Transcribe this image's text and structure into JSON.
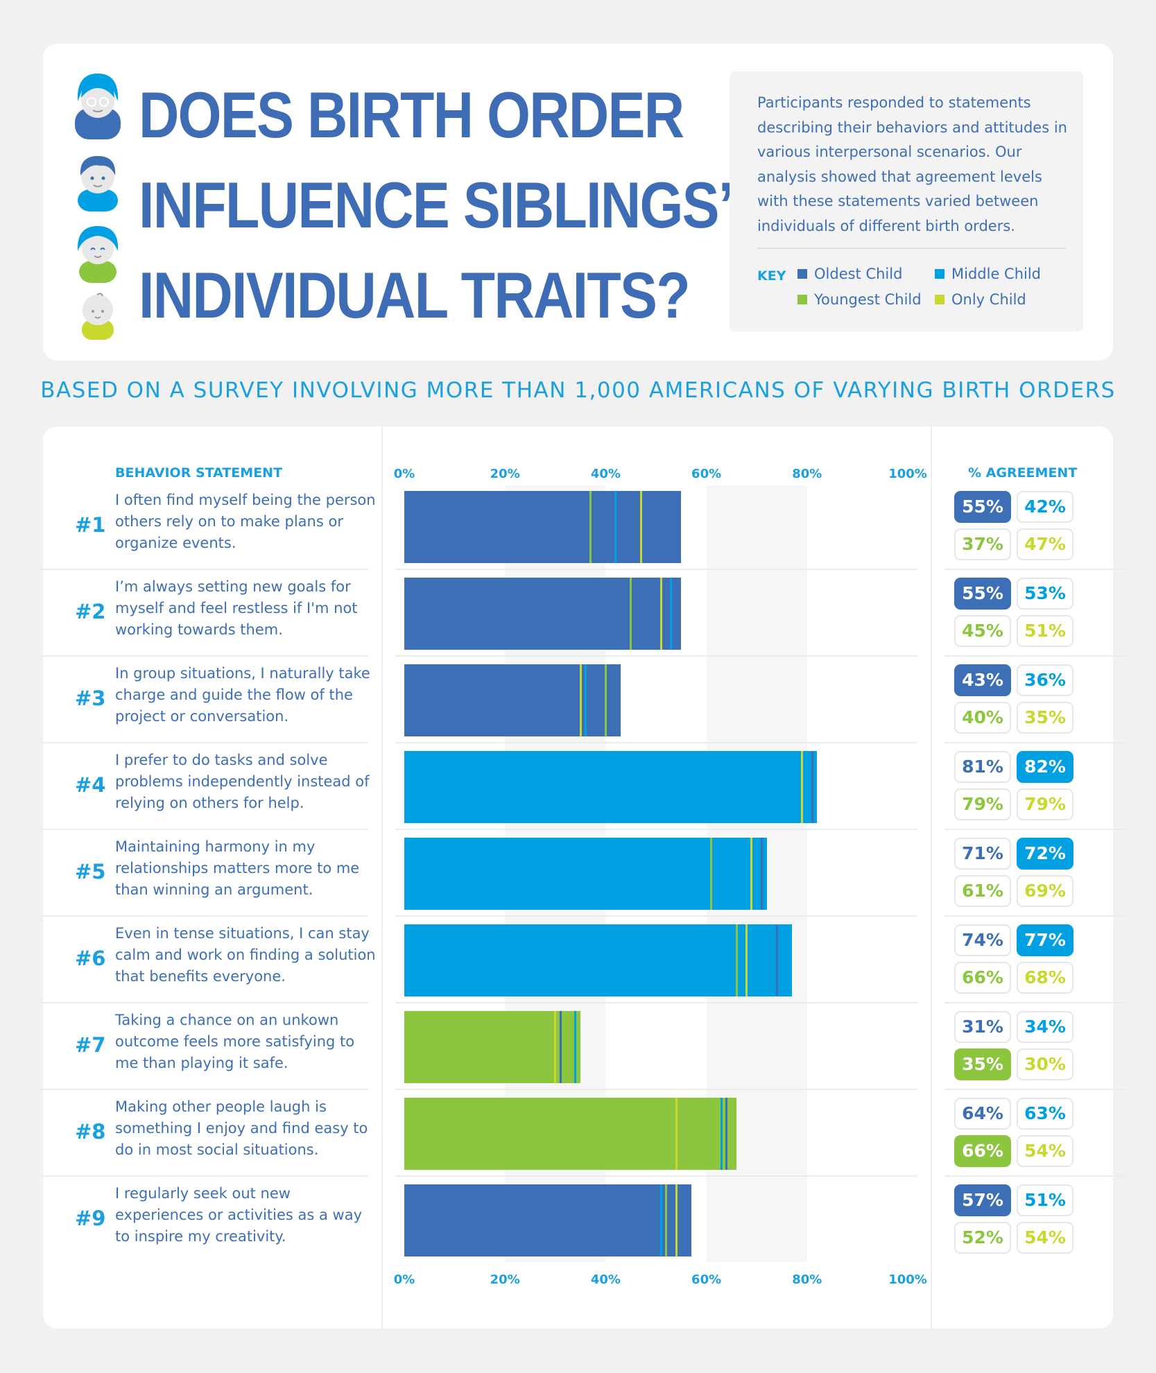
{
  "header": {
    "title_lines": [
      "DOES BIRTH ORDER",
      "INFLUENCE SIBLINGS’",
      "INDIVIDUAL TRAITS?"
    ],
    "description": "Participants responded to statements describing their behaviors and attitudes in various interpersonal scenarios. Our analysis showed that agreement levels with these statements varied between individuals of different birth orders.",
    "key_label": "KEY",
    "key_items": [
      "Oldest Child",
      "Middle Child",
      "Youngest Child",
      "Only Child"
    ]
  },
  "subtitle": "BASED ON A SURVEY INVOLVING MORE THAN 1,000 AMERICANS OF VARYING BIRTH ORDERS",
  "columns": {
    "statement": "BEHAVIOR STATEMENT",
    "agreement": "% AGREEMENT"
  },
  "colors": {
    "oldest": "#3c6fb6",
    "middle": "#00a0e3",
    "youngest": "#8cc63f",
    "only": "#c8d82f"
  },
  "chart_data": {
    "type": "bar",
    "orientation": "horizontal",
    "xlim": [
      0,
      100
    ],
    "tick_labels": [
      "0%",
      "20%",
      "40%",
      "60%",
      "80%",
      "100%"
    ],
    "series_names": [
      "Oldest Child",
      "Middle Child",
      "Youngest Child",
      "Only Child"
    ],
    "rows": [
      {
        "num": "#1",
        "statement": "I often find myself being the person others rely on to make plans or organize events.",
        "values": [
          55,
          42,
          37,
          47
        ],
        "labels": [
          "55%",
          "42%",
          "37%",
          "47%"
        ],
        "highlight": 0
      },
      {
        "num": "#2",
        "statement": "I’m always setting new goals for myself and feel restless if I'm not working towards them.",
        "values": [
          55,
          53,
          45,
          51
        ],
        "labels": [
          "55%",
          "53%",
          "45%",
          "51%"
        ],
        "highlight": 0
      },
      {
        "num": "#3",
        "statement": "In group situations, I naturally take charge and guide the flow of the project or conversation.",
        "values": [
          43,
          36,
          40,
          35
        ],
        "labels": [
          "43%",
          "36%",
          "40%",
          "35%"
        ],
        "highlight": 0
      },
      {
        "num": "#4",
        "statement": "I prefer to do tasks and solve problems independently instead of relying on others for help.",
        "values": [
          81,
          82,
          79,
          79
        ],
        "labels": [
          "81%",
          "82%",
          "79%",
          "79%"
        ],
        "highlight": 1
      },
      {
        "num": "#5",
        "statement": "Maintaining harmony in my relationships matters more to me than winning an argument.",
        "values": [
          71,
          72,
          61,
          69
        ],
        "labels": [
          "71%",
          "72%",
          "61%",
          "69%"
        ],
        "highlight": 1
      },
      {
        "num": "#6",
        "statement": "Even in tense situations, I can stay calm and work on finding a solution that benefits everyone.",
        "values": [
          74,
          77,
          66,
          68
        ],
        "labels": [
          "74%",
          "77%",
          "66%",
          "68%"
        ],
        "highlight": 1
      },
      {
        "num": "#7",
        "statement": "Taking a chance on an unkown outcome feels more satisfying to me than playing it safe.",
        "values": [
          31,
          34,
          35,
          30
        ],
        "labels": [
          "31%",
          "34%",
          "35%",
          "30%"
        ],
        "highlight": 2
      },
      {
        "num": "#8",
        "statement": "Making other people laugh is something I enjoy and find easy to do in most social situations.",
        "values": [
          64,
          63,
          66,
          54
        ],
        "labels": [
          "64%",
          "63%",
          "66%",
          "54%"
        ],
        "highlight": 2
      },
      {
        "num": "#9",
        "statement": "I regularly seek out new experiences or activities as a way to inspire my creativity.",
        "values": [
          57,
          51,
          52,
          54
        ],
        "labels": [
          "57%",
          "51%",
          "52%",
          "54%"
        ],
        "highlight": 0
      }
    ]
  }
}
